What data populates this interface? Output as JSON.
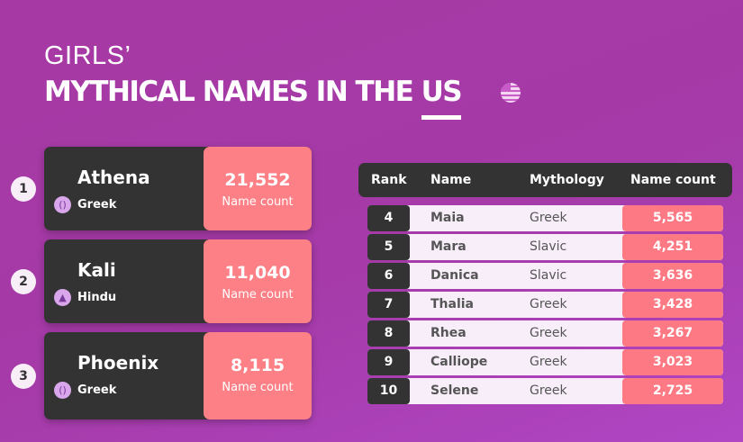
{
  "header": {
    "subtitle": "GIRLS’",
    "title_main": "MYTHICAL NAMES IN THE ",
    "title_us": "US",
    "flag_icon": "us-flag-icon"
  },
  "top3": [
    {
      "rank": "1",
      "name": "Athena",
      "mythology": "Greek",
      "count": "21,552",
      "count_label": "Name count",
      "icon": "greek-icon"
    },
    {
      "rank": "2",
      "name": "Kali",
      "mythology": "Hindu",
      "count": "11,040",
      "count_label": "Name count",
      "icon": "hindu-lamp-icon"
    },
    {
      "rank": "3",
      "name": "Phoenix",
      "mythology": "Greek",
      "count": "8,115",
      "count_label": "Name count",
      "icon": "greek-icon"
    }
  ],
  "table": {
    "headers": [
      "Rank",
      "Name",
      "Mythology",
      "Name count"
    ],
    "rows": [
      {
        "rank": "4",
        "name": "Maia",
        "mythology": "Greek",
        "count": "5,565"
      },
      {
        "rank": "5",
        "name": "Mara",
        "mythology": "Slavic",
        "count": "4,251"
      },
      {
        "rank": "6",
        "name": "Danica",
        "mythology": "Slavic",
        "count": "3,636"
      },
      {
        "rank": "7",
        "name": "Thalia",
        "mythology": "Greek",
        "count": "3,428"
      },
      {
        "rank": "8",
        "name": "Rhea",
        "mythology": "Greek",
        "count": "3,267"
      },
      {
        "rank": "9",
        "name": "Calliope",
        "mythology": "Greek",
        "count": "3,023"
      },
      {
        "rank": "10",
        "name": "Selene",
        "mythology": "Greek",
        "count": "2,725"
      }
    ]
  },
  "colors": {
    "background": "#a639a3",
    "dark": "#333333",
    "pink": "#fd8086",
    "row_bg": "#f8eefa"
  }
}
